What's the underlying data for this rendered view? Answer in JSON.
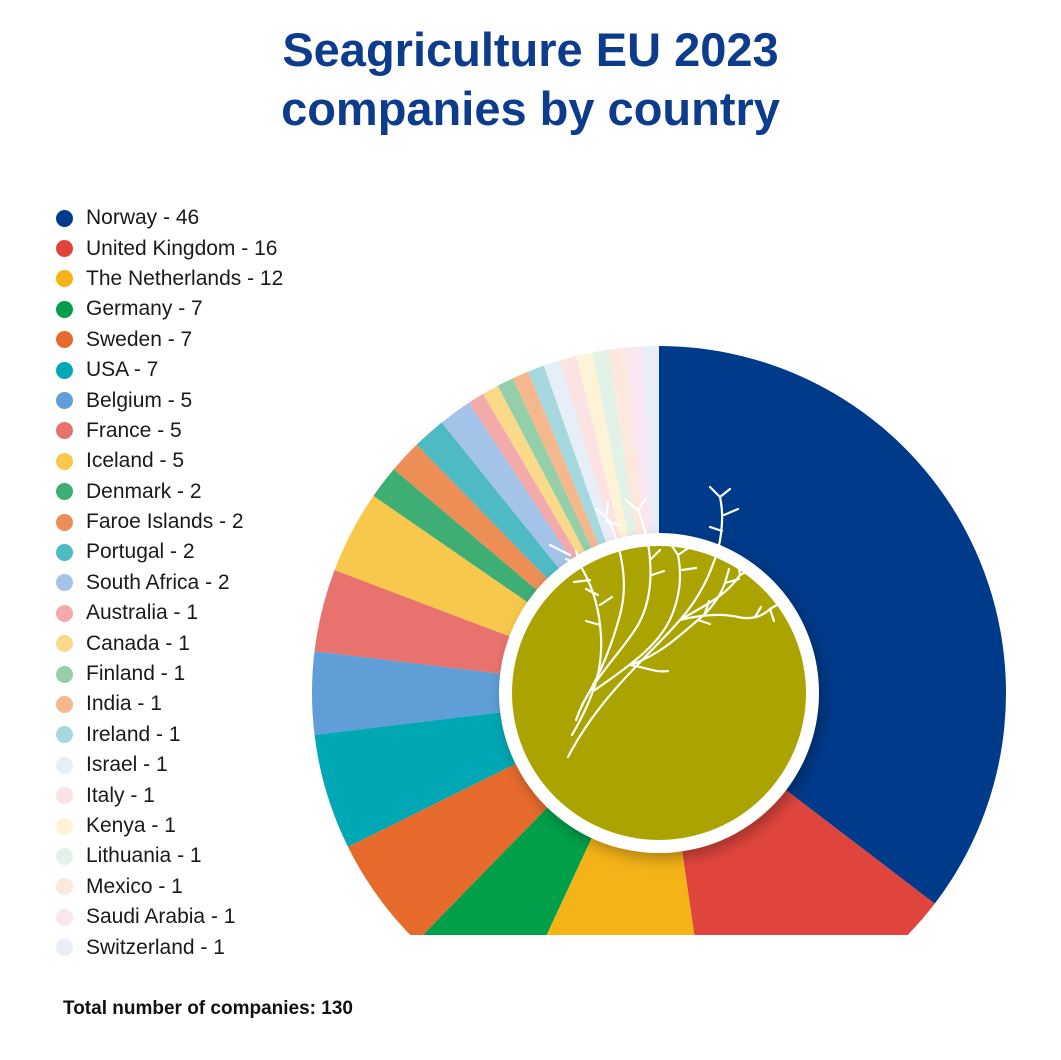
{
  "title_lines": [
    "Seagriculture EU 2023",
    "companies by country"
  ],
  "total_label": "Total number of companies: 130",
  "center_icon": "seaweed-illustration",
  "chart_data": {
    "type": "pie",
    "title": "Seagriculture EU 2023 companies by country",
    "legend_position": "left",
    "total": 130,
    "slices": [
      {
        "label": "Norway - 46",
        "name": "Norway",
        "value": 46,
        "color": "#003a8a"
      },
      {
        "label": "United Kingdom - 16",
        "name": "United Kingdom",
        "value": 16,
        "color": "#e0453d"
      },
      {
        "label": "The Netherlands - 12",
        "name": "The Netherlands",
        "value": 12,
        "color": "#f4b317"
      },
      {
        "label": "Germany - 7",
        "name": "Germany",
        "value": 7,
        "color": "#00a04a"
      },
      {
        "label": "Sweden - 7",
        "name": "Sweden",
        "value": 7,
        "color": "#e66a2c"
      },
      {
        "label": "USA - 7",
        "name": "USA",
        "value": 7,
        "color": "#00a7b4"
      },
      {
        "label": "Belgium - 5",
        "name": "Belgium",
        "value": 5,
        "color": "#5f9ed6"
      },
      {
        "label": "France - 5",
        "name": "France",
        "value": 5,
        "color": "#e8736e"
      },
      {
        "label": "Iceland - 5",
        "name": "Iceland",
        "value": 5,
        "color": "#f8c84c"
      },
      {
        "label": "Denmark - 2",
        "name": "Denmark",
        "value": 2,
        "color": "#3fae74"
      },
      {
        "label": "Faroe Islands - 2",
        "name": "Faroe Islands",
        "value": 2,
        "color": "#ec8e56"
      },
      {
        "label": "Portugal - 2",
        "name": "Portugal",
        "value": 2,
        "color": "#4dbac4"
      },
      {
        "label": "South Africa - 2",
        "name": "South Africa",
        "value": 2,
        "color": "#a3c3e8"
      },
      {
        "label": "Australia - 1",
        "name": "Australia",
        "value": 1,
        "color": "#f2aaaa"
      },
      {
        "label": "Canada - 1",
        "name": "Canada",
        "value": 1,
        "color": "#fbd98b"
      },
      {
        "label": "Finland - 1",
        "name": "Finland",
        "value": 1,
        "color": "#95cfaa"
      },
      {
        "label": "India - 1",
        "name": "India",
        "value": 1,
        "color": "#f5b88d"
      },
      {
        "label": "Ireland - 1",
        "name": "Ireland",
        "value": 1,
        "color": "#a6d9df"
      },
      {
        "label": "Israel - 1",
        "name": "Israel",
        "value": 1,
        "color": "#e6eef8"
      },
      {
        "label": "Italy - 1",
        "name": "Italy",
        "value": 1,
        "color": "#fbe3e3"
      },
      {
        "label": "Kenya - 1",
        "name": "Kenya",
        "value": 1,
        "color": "#fdf3d7"
      },
      {
        "label": "Lithuania - 1",
        "name": "Lithuania",
        "value": 1,
        "color": "#e3f2e7"
      },
      {
        "label": "Mexico - 1",
        "name": "Mexico",
        "value": 1,
        "color": "#fde8dd"
      },
      {
        "label": "Saudi Arabia - 1",
        "name": "Saudi Arabia",
        "value": 1,
        "color": "#f8e6f0"
      },
      {
        "label": "Switzerland - 1",
        "name": "Switzerland",
        "value": 1,
        "color": "#e8edf6"
      }
    ],
    "center_fill": "#aba400"
  }
}
